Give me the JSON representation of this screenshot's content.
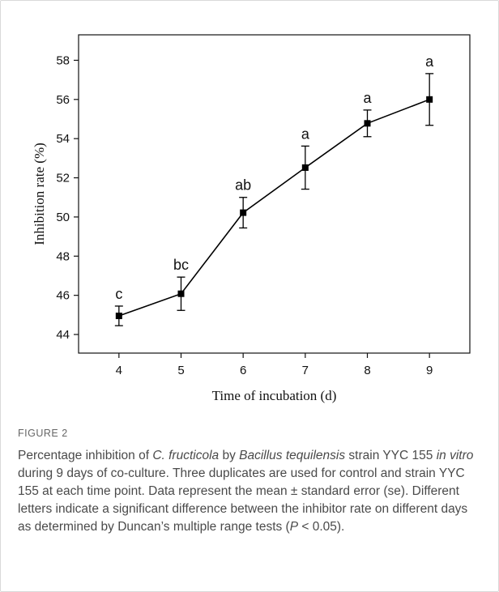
{
  "chart_data": {
    "type": "line",
    "xlabel": "Time of incubation (d)",
    "ylabel": "Inhibition rate (%)",
    "xlim": [
      3.35,
      9.65
    ],
    "ylim": [
      43.05,
      59.3
    ],
    "x_ticks": [
      4,
      5,
      6,
      7,
      8,
      9
    ],
    "y_ticks": [
      44,
      46,
      48,
      50,
      52,
      54,
      56,
      58
    ],
    "series": [
      {
        "x": [
          4,
          5,
          6,
          7,
          8,
          9
        ],
        "y": [
          44.95,
          46.08,
          50.22,
          52.52,
          54.78,
          56.0
        ],
        "se": [
          0.5,
          0.85,
          0.78,
          1.1,
          0.68,
          1.32
        ],
        "letters": [
          "c",
          "bc",
          "ab",
          "a",
          "a",
          "a"
        ]
      }
    ],
    "grid": false,
    "color": "#000000"
  },
  "caption": {
    "figure_label": "FIGURE 2",
    "text_parts": [
      {
        "t": "Percentage inhibition of ",
        "i": false
      },
      {
        "t": "C. fructicola",
        "i": true
      },
      {
        "t": " by ",
        "i": false
      },
      {
        "t": "Bacillus tequilensis",
        "i": true
      },
      {
        "t": " strain YYC 155 ",
        "i": false
      },
      {
        "t": "in vitro",
        "i": true
      },
      {
        "t": " during 9 days of co-culture. Three duplicates are used for control and strain YYC 155 at each time point. Data represent the mean ± standard error (se). Different letters indicate a significant difference between the inhibitor rate on different days as determined by Duncan’s multiple range tests (",
        "i": false
      },
      {
        "t": "P",
        "i": true
      },
      {
        "t": " < 0.05).",
        "i": false
      }
    ]
  }
}
